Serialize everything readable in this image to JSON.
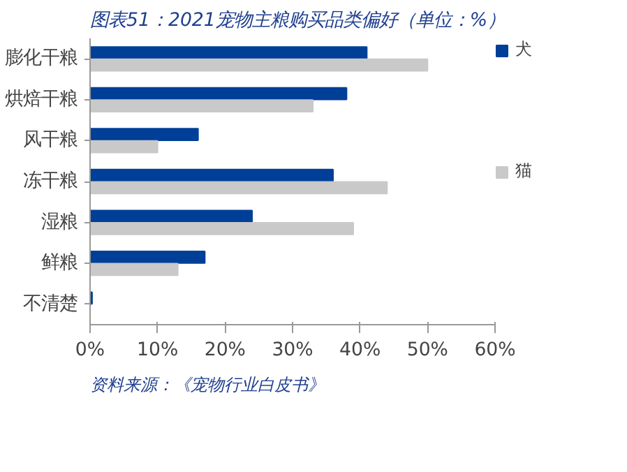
{
  "chart_data": {
    "type": "bar",
    "orientation": "horizontal",
    "title": "图表51：2021宠物主粮购买品类偏好（单位：%）",
    "categories": [
      "膨化干粮",
      "烘焙干粮",
      "风干粮",
      "冻干粮",
      "湿粮",
      "鲜粮",
      "不清楚"
    ],
    "series": [
      {
        "name": "犬",
        "color": "#003f98",
        "values": [
          41,
          38,
          16,
          36,
          24,
          17,
          0.3
        ]
      },
      {
        "name": "猫",
        "color": "#c9c9c9",
        "values": [
          50,
          33,
          10,
          44,
          39,
          13,
          0
        ]
      }
    ],
    "xlim": [
      0,
      60
    ],
    "xticks": [
      {
        "value": 0,
        "label": "0%"
      },
      {
        "value": 10,
        "label": "10%"
      },
      {
        "value": 20,
        "label": "20%"
      },
      {
        "value": 30,
        "label": "30%"
      },
      {
        "value": 40,
        "label": "40%"
      },
      {
        "value": 50,
        "label": "50%"
      },
      {
        "value": 60,
        "label": "60%"
      }
    ],
    "grid": false,
    "legend": "right",
    "annotations": [
      "资料来源：《宠物行业白皮书》"
    ]
  }
}
